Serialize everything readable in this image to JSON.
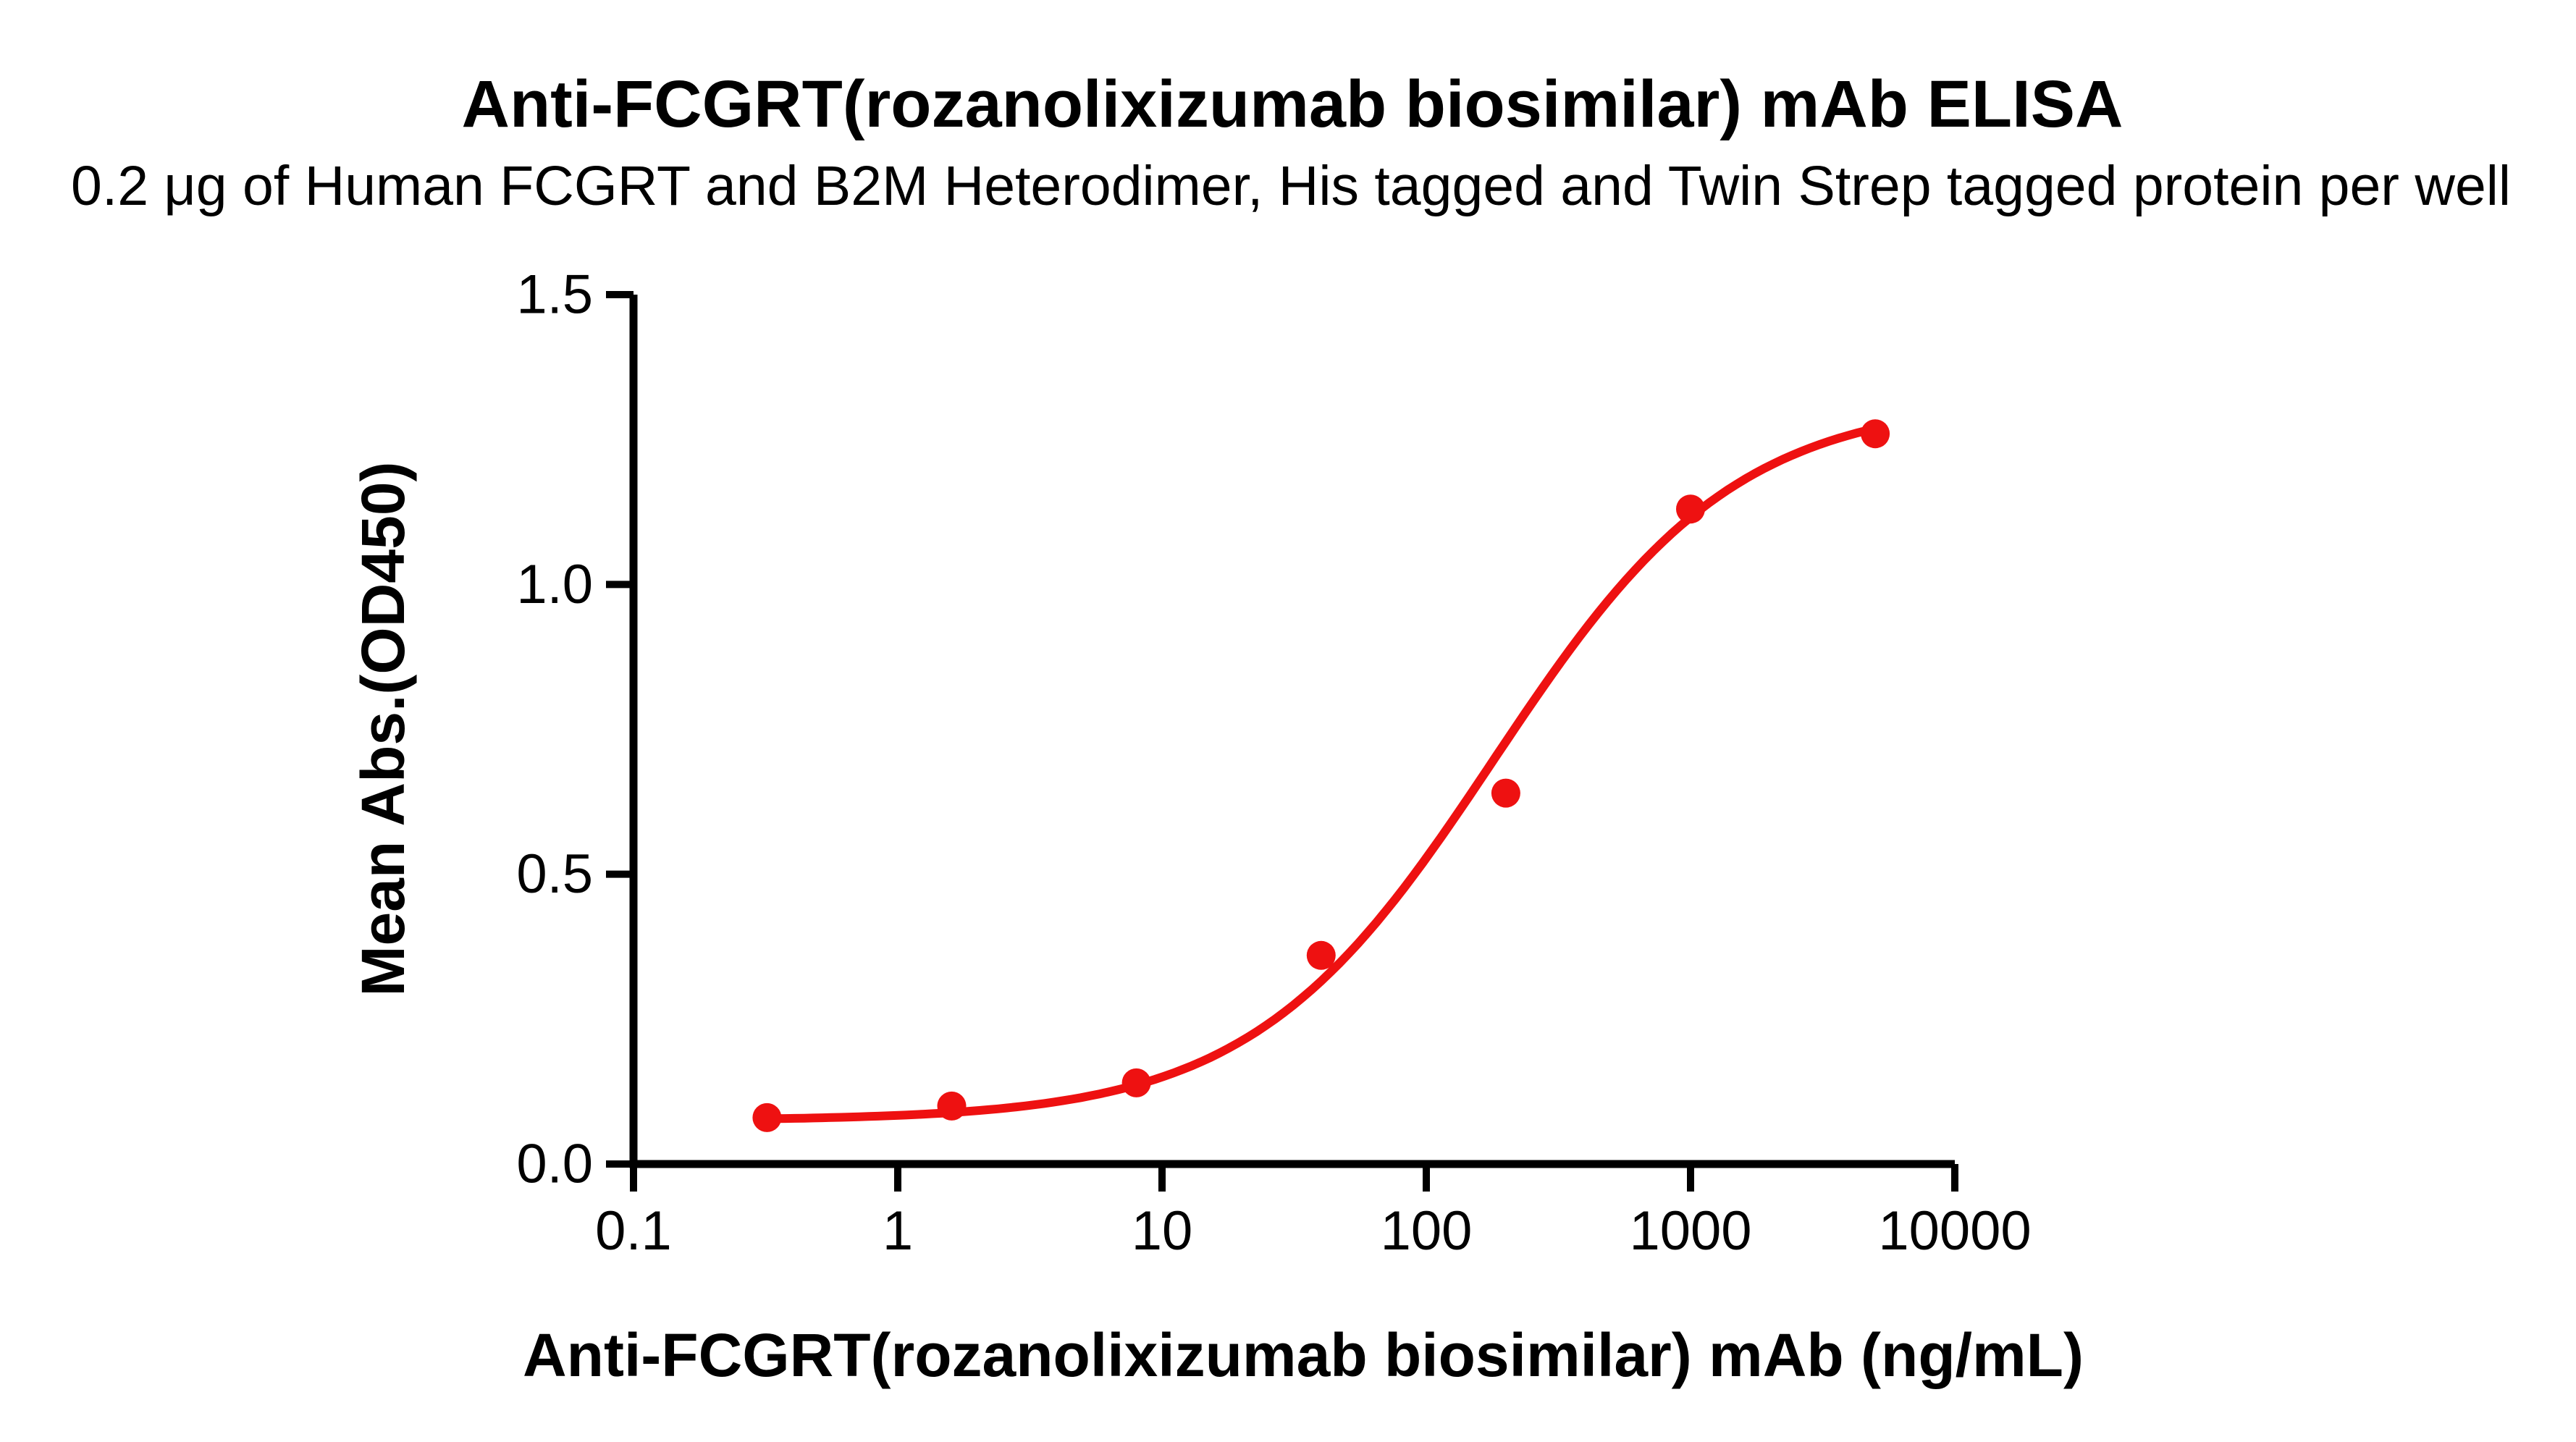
{
  "figure": {
    "title": "Anti-FCGRT(rozanolixizumab biosimilar) mAb ELISA",
    "subtitle": "0.2 μg of Human FCGRT and B2M Heterodimer, His tagged and Twin Strep tagged protein per well"
  },
  "chart_data": {
    "type": "scatter",
    "title": "Anti-FCGRT(rozanolixizumab biosimilar) mAb ELISA",
    "subtitle": "0.2 μg of Human FCGRT and B2M Heterodimer, His tagged and Twin Strep tagged protein per well",
    "xlabel": "Anti-FCGRT(rozanolixizumab biosimilar) mAb (ng/mL)",
    "ylabel": "Mean Abs.(OD450)",
    "xscale": "log",
    "xlim": [
      0.1,
      10000
    ],
    "ylim": [
      0,
      1.5
    ],
    "xticks": [
      0.1,
      1,
      10,
      100,
      1000,
      10000
    ],
    "xtick_labels": [
      "0.1",
      "1",
      "10",
      "100",
      "1000",
      "10000"
    ],
    "yticks": [
      0,
      0.5,
      1,
      1.5
    ],
    "ytick_labels": [
      "0.0",
      "0.5",
      "1.0",
      "1.5"
    ],
    "series_name": "Anti-FCGRT(rozanolixizumab biosimilar) mAb",
    "x": [
      0.32,
      1.6,
      8,
      40,
      200,
      1000,
      5000
    ],
    "y": [
      0.08,
      0.1,
      0.14,
      0.36,
      0.64,
      1.13,
      1.26
    ],
    "curve_fit": {
      "model": "4PL",
      "bottom": 0.075,
      "top": 1.32,
      "ec50": 180,
      "hill": 0.95
    },
    "point_color": "#EE1111",
    "line_color": "#EE1111",
    "axis_color": "#000000",
    "grid": false,
    "legend": false
  }
}
